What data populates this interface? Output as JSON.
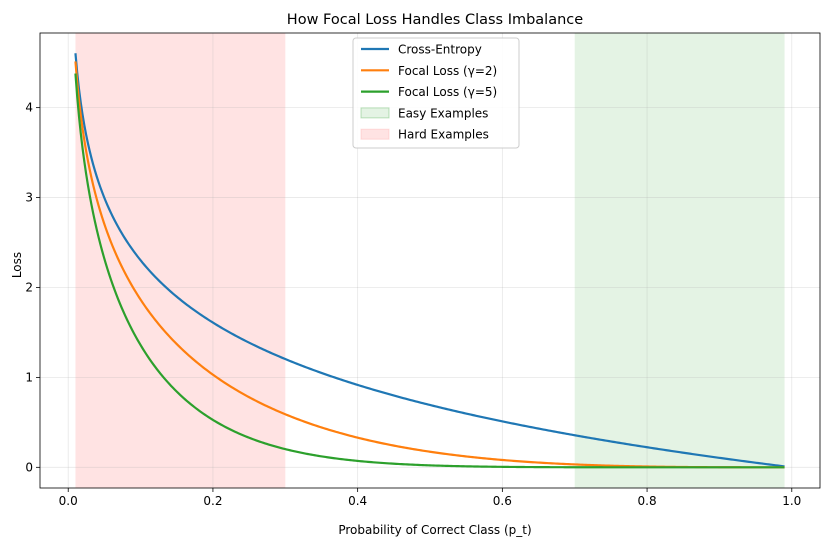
{
  "chart_data": {
    "type": "line",
    "title": "How Focal Loss Handles Class Imbalance",
    "xlabel": "Probability of Correct Class (p_t)",
    "ylabel": "Loss",
    "xlim": [
      -0.039,
      1.039
    ],
    "ylim": [
      -0.23,
      4.83
    ],
    "xticks": [
      "0.0",
      "0.2",
      "0.4",
      "0.6",
      "0.8",
      "1.0"
    ],
    "yticks": [
      "0",
      "1",
      "2",
      "3",
      "4"
    ],
    "grid": true,
    "legend_position": "top-center",
    "x_range": [
      0.01,
      0.99
    ],
    "series": [
      {
        "name": "Cross-Entropy",
        "color": "#1f77b4",
        "formula": "-log(p)",
        "values_at": {
          "0.01": 4.61,
          "0.1": 2.3,
          "0.2": 1.61,
          "0.3": 1.2,
          "0.5": 0.69,
          "0.7": 0.36,
          "0.9": 0.11,
          "0.99": 0.01
        }
      },
      {
        "name": "Focal Loss (γ=2)",
        "color": "#ff7f0e",
        "formula": "-(1-p)^2 log(p)",
        "values_at": {
          "0.01": 4.51,
          "0.1": 1.87,
          "0.2": 1.03,
          "0.3": 0.59,
          "0.5": 0.17,
          "0.7": 0.03,
          "0.9": 0.001,
          "0.99": 0.0
        }
      },
      {
        "name": "Focal Loss (γ=5)",
        "color": "#2ca02c",
        "formula": "-(1-p)^5 log(p)",
        "values_at": {
          "0.01": 4.38,
          "0.1": 1.36,
          "0.2": 0.53,
          "0.3": 0.2,
          "0.5": 0.02,
          "0.7": 0.0,
          "0.9": 0.0,
          "0.99": 0.0
        }
      }
    ],
    "regions": [
      {
        "name": "Easy Examples",
        "x_start": 0.7,
        "x_end": 0.99,
        "color": "#2ca02c"
      },
      {
        "name": "Hard Examples",
        "x_start": 0.01,
        "x_end": 0.3,
        "color": "#ff9999"
      }
    ]
  }
}
